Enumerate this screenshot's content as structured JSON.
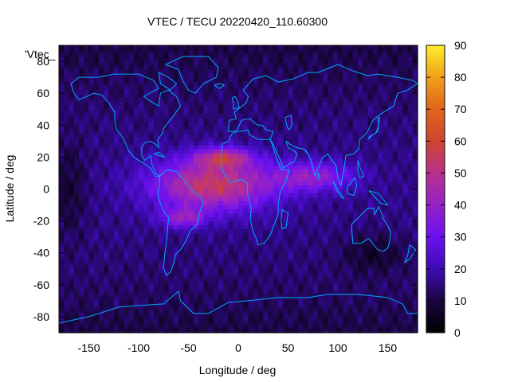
{
  "chart_data": {
    "type": "heatmap",
    "title": "VTEC / TECU 20220420_110.60300",
    "xlabel": "Longitude / deg",
    "ylabel": "Latitude / deg",
    "key_label": "'Vtec_",
    "xlim": [
      -180,
      180
    ],
    "ylim": [
      -90,
      90
    ],
    "x_ticks": [
      -150,
      -100,
      -50,
      0,
      50,
      100,
      150
    ],
    "x_tick_labels": [
      "-150",
      "-100",
      "-50",
      "0",
      "50",
      "100",
      "150"
    ],
    "y_ticks": [
      -80,
      -60,
      -40,
      -20,
      0,
      20,
      40,
      60,
      80
    ],
    "y_tick_labels": [
      "-80",
      "-60",
      "-40",
      "-20",
      "0",
      "20",
      "40",
      "60",
      "80"
    ],
    "colorbar": {
      "range": [
        0,
        90
      ],
      "ticks": [
        0,
        10,
        20,
        30,
        40,
        50,
        60,
        70,
        80,
        90
      ],
      "tick_labels": [
        "0",
        "10",
        "20",
        "30",
        "40",
        "50",
        "60",
        "70",
        "80",
        "90"
      ],
      "colors": [
        "#000000",
        "#1a0640",
        "#3d0bb4",
        "#6b11f0",
        "#9421c8",
        "#b8318e",
        "#d0442e",
        "#e0651a",
        "#f0a018",
        "#ffee2a"
      ]
    },
    "grid": {
      "lon_step_deg": 5,
      "lat_step_deg": 2.5
    },
    "ionosphere_features": {
      "background_tecu": 16,
      "main_crest": {
        "center_lon": -25,
        "center_lat": 3,
        "peak_tecu": 52
      },
      "northern_crest": {
        "center_lon": -15,
        "center_lat": 20,
        "peak_tecu": 30
      },
      "southern_crest": {
        "center_lon": -55,
        "center_lat": -18,
        "peak_tecu": 22
      },
      "asian_band": {
        "center_lon": 75,
        "center_lat": 8,
        "peak_tecu": 14
      },
      "polar_low_tecu": 10,
      "night_low_tecu": 8
    },
    "coastline_color": "#00a8ff"
  }
}
